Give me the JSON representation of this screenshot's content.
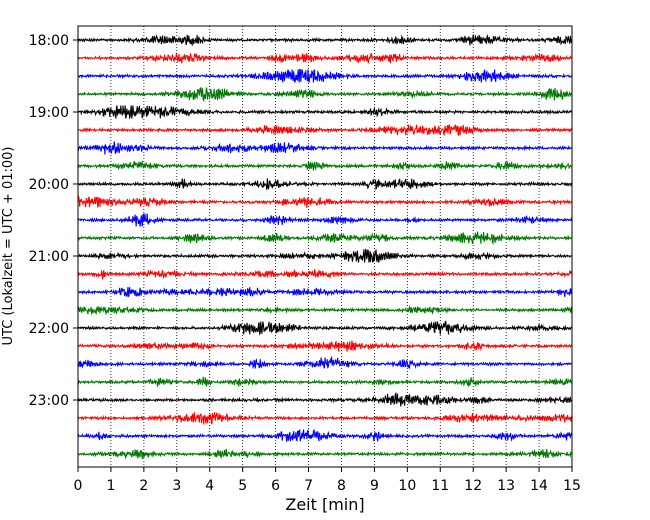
{
  "chart_data": {
    "type": "line",
    "title": "",
    "xlabel": "Zeit  [min]",
    "ylabel": "UTC (Lokalzeit = UTC + 01:00)",
    "x_ticks": [
      "0",
      "1",
      "2",
      "3",
      "4",
      "5",
      "6",
      "7",
      "8",
      "9",
      "10",
      "11",
      "12",
      "13",
      "14",
      "15"
    ],
    "xlim": [
      0,
      15
    ],
    "hour_labels": [
      "18:00",
      "19:00",
      "20:00",
      "21:00",
      "22:00",
      "23:00"
    ],
    "trace_offsets_min": [
      0,
      15,
      30,
      45,
      60,
      75,
      90,
      105,
      120,
      135,
      150,
      165,
      180,
      195,
      210,
      225,
      240,
      255,
      270,
      285,
      300,
      315,
      330,
      345
    ],
    "trace_colors": [
      "#000000",
      "#ff0000",
      "#0000ff",
      "#007700"
    ],
    "vertical_grid": "dotted",
    "legend": "none"
  }
}
